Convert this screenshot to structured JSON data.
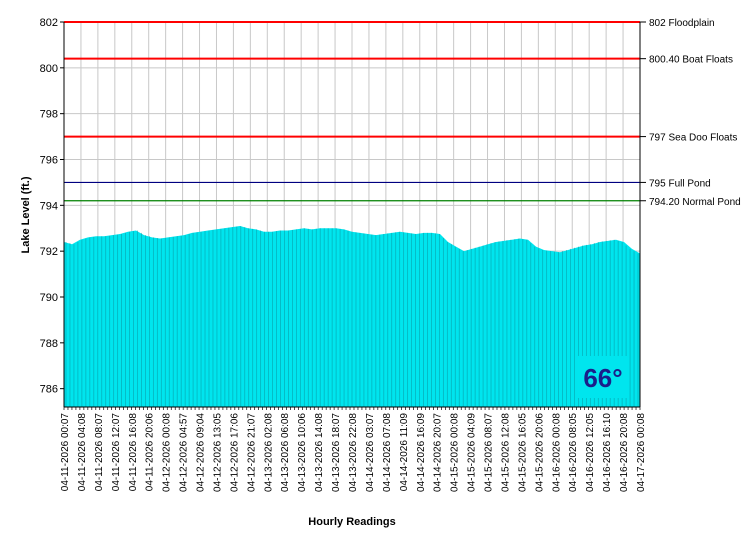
{
  "chart_data": {
    "type": "area",
    "xlabel": "Hourly Readings",
    "ylabel": "Lake Level (ft.)",
    "ylim": [
      785.2,
      802
    ],
    "yticks": [
      786,
      788,
      790,
      792,
      794,
      796,
      798,
      800,
      802
    ],
    "grid": true,
    "x_tick_labels": [
      "04-11-2026 00:07",
      "04-11-2026 04:08",
      "04-11-2026 08:07",
      "04-11-2026 12:07",
      "04-11-2026 16:08",
      "04-11-2026 20:06",
      "04-12-2026 00:08",
      "04-12-2026 04:57",
      "04-12-2026 09:04",
      "04-12-2026 13:05",
      "04-12-2026 17:06",
      "04-12-2026 21:07",
      "04-13-2026 02:08",
      "04-13-2026 06:08",
      "04-13-2026 10:06",
      "04-13-2026 14:08",
      "04-13-2026 18:07",
      "04-13-2026 22:08",
      "04-14-2026 03:07",
      "04-14-2026 07:08",
      "04-14-2026 11:09",
      "04-14-2026 16:09",
      "04-14-2026 20:07",
      "04-15-2026 00:08",
      "04-15-2026 04:09",
      "04-15-2026 08:07",
      "04-15-2026 12:08",
      "04-15-2026 16:05",
      "04-15-2026 20:06",
      "04-16-2026 00:08",
      "04-16-2026 08:05",
      "04-16-2026 12:05",
      "04-16-2026 16:10",
      "04-16-2026 20:08",
      "04-17-2026 00:08"
    ],
    "series": [
      {
        "values": [
          792.4,
          792.3,
          792.5,
          792.6,
          792.65,
          792.65,
          792.7,
          792.75,
          792.85,
          792.9,
          792.7,
          792.6,
          792.55,
          792.6,
          792.65,
          792.7,
          792.8,
          792.85,
          792.9,
          792.95,
          793.0,
          793.05,
          793.1,
          793.0,
          792.95,
          792.85,
          792.85,
          792.9,
          792.9,
          792.95,
          793.0,
          792.95,
          793.0,
          793.0,
          793.0,
          792.95,
          792.85,
          792.8,
          792.75,
          792.7,
          792.75,
          792.8,
          792.85,
          792.8,
          792.75,
          792.8,
          792.8,
          792.75,
          792.4,
          792.2,
          792.0,
          792.1,
          792.2,
          792.3,
          792.4,
          792.45,
          792.5,
          792.55,
          792.5,
          792.2,
          792.05,
          792.0,
          791.95,
          792.05,
          792.15,
          792.25,
          792.3,
          792.4,
          792.45,
          792.5,
          792.4,
          792.1,
          791.9
        ],
        "color": "#00e5ee"
      }
    ],
    "reference_lines": [
      {
        "value": 802,
        "label": "802 Floodplain",
        "color": "#ff0000"
      },
      {
        "value": 800.4,
        "label": "800.40 Boat Floats",
        "color": "#ff0000"
      },
      {
        "value": 797,
        "label": "797 Sea Doo Floats",
        "color": "#ff0000"
      },
      {
        "value": 795,
        "label": "795 Full Pond",
        "color": "#000080"
      },
      {
        "value": 794.2,
        "label": "794.20 Normal Pond",
        "color": "#008000"
      }
    ]
  },
  "temperature_badge": {
    "value": "66°",
    "background": "#00e5ee",
    "color": "#1a1f8a"
  }
}
